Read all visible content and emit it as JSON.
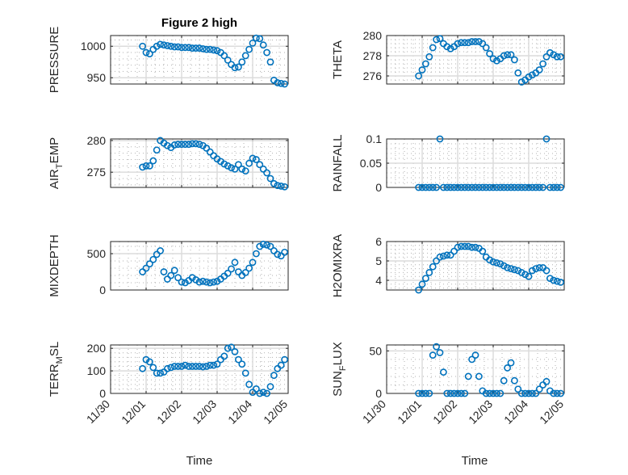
{
  "chart_data": [
    {
      "type": "scatter",
      "title": "Figure 2 high",
      "ylabel": {
        "main": "PRESSURE",
        "sub": "",
        "rest": ""
      },
      "ylim": [
        940,
        1017
      ],
      "yticks": [
        950,
        1000
      ],
      "values": [
        1000,
        990,
        988,
        995,
        1000,
        1003,
        1002,
        1001,
        1000,
        999,
        999,
        998,
        998,
        998,
        997,
        997,
        997,
        996,
        995,
        995,
        994,
        993,
        990,
        985,
        978,
        971,
        966,
        967,
        975,
        985,
        995,
        1005,
        1013,
        1012,
        1002,
        990,
        975,
        946,
        942,
        941,
        940
      ]
    },
    {
      "type": "scatter",
      "title": "",
      "ylabel": {
        "main": "THETA",
        "sub": "",
        "rest": ""
      },
      "ylim": [
        275.2,
        280
      ],
      "yticks": [
        276,
        278,
        280
      ],
      "values": [
        276.0,
        276.6,
        277.2,
        277.9,
        278.8,
        279.6,
        279.7,
        279.2,
        278.9,
        278.7,
        278.9,
        279.2,
        279.3,
        279.3,
        279.3,
        279.4,
        279.4,
        279.4,
        279.2,
        278.8,
        278.2,
        277.7,
        277.5,
        277.7,
        278.0,
        278.1,
        278.1,
        277.6,
        276.3,
        275.4,
        275.6,
        275.9,
        276.1,
        276.3,
        276.6,
        277.2,
        277.9,
        278.3,
        278.1,
        277.9,
        277.9
      ]
    },
    {
      "type": "scatter",
      "title": "",
      "ylabel": {
        "main": "AIR",
        "sub": "T",
        "rest": "EMP"
      },
      "ylim": [
        272.6,
        280.25
      ],
      "yticks": [
        275,
        280
      ],
      "values": [
        275.8,
        276.0,
        276.0,
        276.8,
        278.5,
        280.0,
        279.6,
        279.2,
        278.9,
        279.3,
        279.4,
        279.4,
        279.4,
        279.4,
        279.5,
        279.5,
        279.4,
        279.2,
        278.8,
        278.2,
        277.6,
        277.1,
        276.7,
        276.3,
        276.0,
        275.7,
        275.5,
        276.2,
        275.5,
        275.2,
        276.4,
        277.2,
        277.0,
        276.2,
        275.5,
        274.9,
        274.0,
        273.2,
        272.9,
        272.8,
        272.7
      ]
    },
    {
      "type": "scatter",
      "title": "",
      "ylabel": {
        "main": "RAINFALL",
        "sub": "",
        "rest": ""
      },
      "ylim": [
        0,
        0.1
      ],
      "yticks": [
        0,
        0.05,
        0.1
      ],
      "values": [
        0,
        0,
        0,
        0,
        0,
        0,
        0.1,
        0,
        0,
        0,
        0,
        0,
        0,
        0,
        0,
        0,
        0,
        0,
        0,
        0,
        0,
        0,
        0,
        0,
        0,
        0,
        0,
        0,
        0,
        0,
        0,
        0,
        0,
        0,
        0,
        0,
        0.1,
        0,
        0,
        0,
        0
      ]
    },
    {
      "type": "scatter",
      "title": "",
      "ylabel": {
        "main": "MIXDEPTH",
        "sub": "",
        "rest": ""
      },
      "ylim": [
        0,
        667
      ],
      "yticks": [
        0,
        500
      ],
      "values": [
        250,
        300,
        360,
        420,
        490,
        540,
        250,
        150,
        200,
        270,
        170,
        110,
        100,
        130,
        170,
        140,
        110,
        120,
        110,
        100,
        110,
        120,
        150,
        190,
        230,
        290,
        380,
        250,
        200,
        240,
        300,
        380,
        500,
        600,
        630,
        620,
        600,
        540,
        490,
        470,
        520
      ]
    },
    {
      "type": "scatter",
      "title": "",
      "ylabel": {
        "main": "H2OMIXRA",
        "sub": "",
        "rest": ""
      },
      "ylim": [
        3.5,
        6
      ],
      "yticks": [
        4,
        5,
        6
      ],
      "values": [
        3.5,
        3.8,
        4.1,
        4.4,
        4.7,
        5.0,
        5.2,
        5.25,
        5.3,
        5.3,
        5.5,
        5.7,
        5.75,
        5.75,
        5.75,
        5.7,
        5.7,
        5.65,
        5.5,
        5.2,
        5.05,
        4.95,
        4.9,
        4.85,
        4.75,
        4.65,
        4.6,
        4.55,
        4.5,
        4.4,
        4.3,
        4.2,
        4.5,
        4.6,
        4.65,
        4.65,
        4.5,
        4.1,
        4.0,
        3.95,
        3.9
      ]
    },
    {
      "type": "scatter",
      "title": "",
      "ylabel": {
        "main": "TERR",
        "sub": "M",
        "rest": "SL"
      },
      "ylim": [
        0,
        215
      ],
      "yticks": [
        0,
        100,
        200
      ],
      "values": [
        110,
        150,
        140,
        115,
        90,
        90,
        95,
        110,
        115,
        120,
        120,
        120,
        125,
        120,
        120,
        120,
        120,
        118,
        120,
        125,
        125,
        130,
        150,
        165,
        200,
        205,
        185,
        150,
        130,
        90,
        40,
        5,
        20,
        0,
        5,
        0,
        30,
        80,
        110,
        125,
        150
      ]
    },
    {
      "type": "scatter",
      "title": "",
      "ylabel": {
        "main": "SUN",
        "sub": "F",
        "rest": "LUX"
      },
      "ylim": [
        0,
        57
      ],
      "yticks": [
        0,
        50
      ],
      "values": [
        0,
        0,
        0,
        0,
        45,
        55,
        48,
        25,
        0,
        0,
        0,
        0,
        0,
        0,
        20,
        40,
        45,
        20,
        3,
        0,
        0,
        0,
        0,
        0,
        15,
        30,
        36,
        15,
        5,
        0,
        0,
        0,
        0,
        0,
        5,
        10,
        14,
        3,
        0,
        0,
        0
      ]
    }
  ],
  "x_axis": {
    "label": "Time",
    "tick_labels": [
      "11/30",
      "12/01",
      "12/02",
      "12/03",
      "12/04",
      "12/05"
    ],
    "xlim_days": [
      0,
      5
    ],
    "x_days": [
      0.9,
      1.0,
      1.1,
      1.2,
      1.3,
      1.4,
      1.5,
      1.6,
      1.7,
      1.8,
      1.9,
      2.0,
      2.1,
      2.2,
      2.3,
      2.4,
      2.5,
      2.6,
      2.7,
      2.8,
      2.9,
      3.0,
      3.1,
      3.2,
      3.3,
      3.4,
      3.5,
      3.6,
      3.7,
      3.8,
      3.9,
      4.0,
      4.1,
      4.2,
      4.3,
      4.4,
      4.5,
      4.6,
      4.7,
      4.8,
      4.9
    ]
  },
  "colors": {
    "marker": "#0072BD",
    "axis": "#262626",
    "grid": "#dcdcdc",
    "minor": "#b0b0b0"
  }
}
